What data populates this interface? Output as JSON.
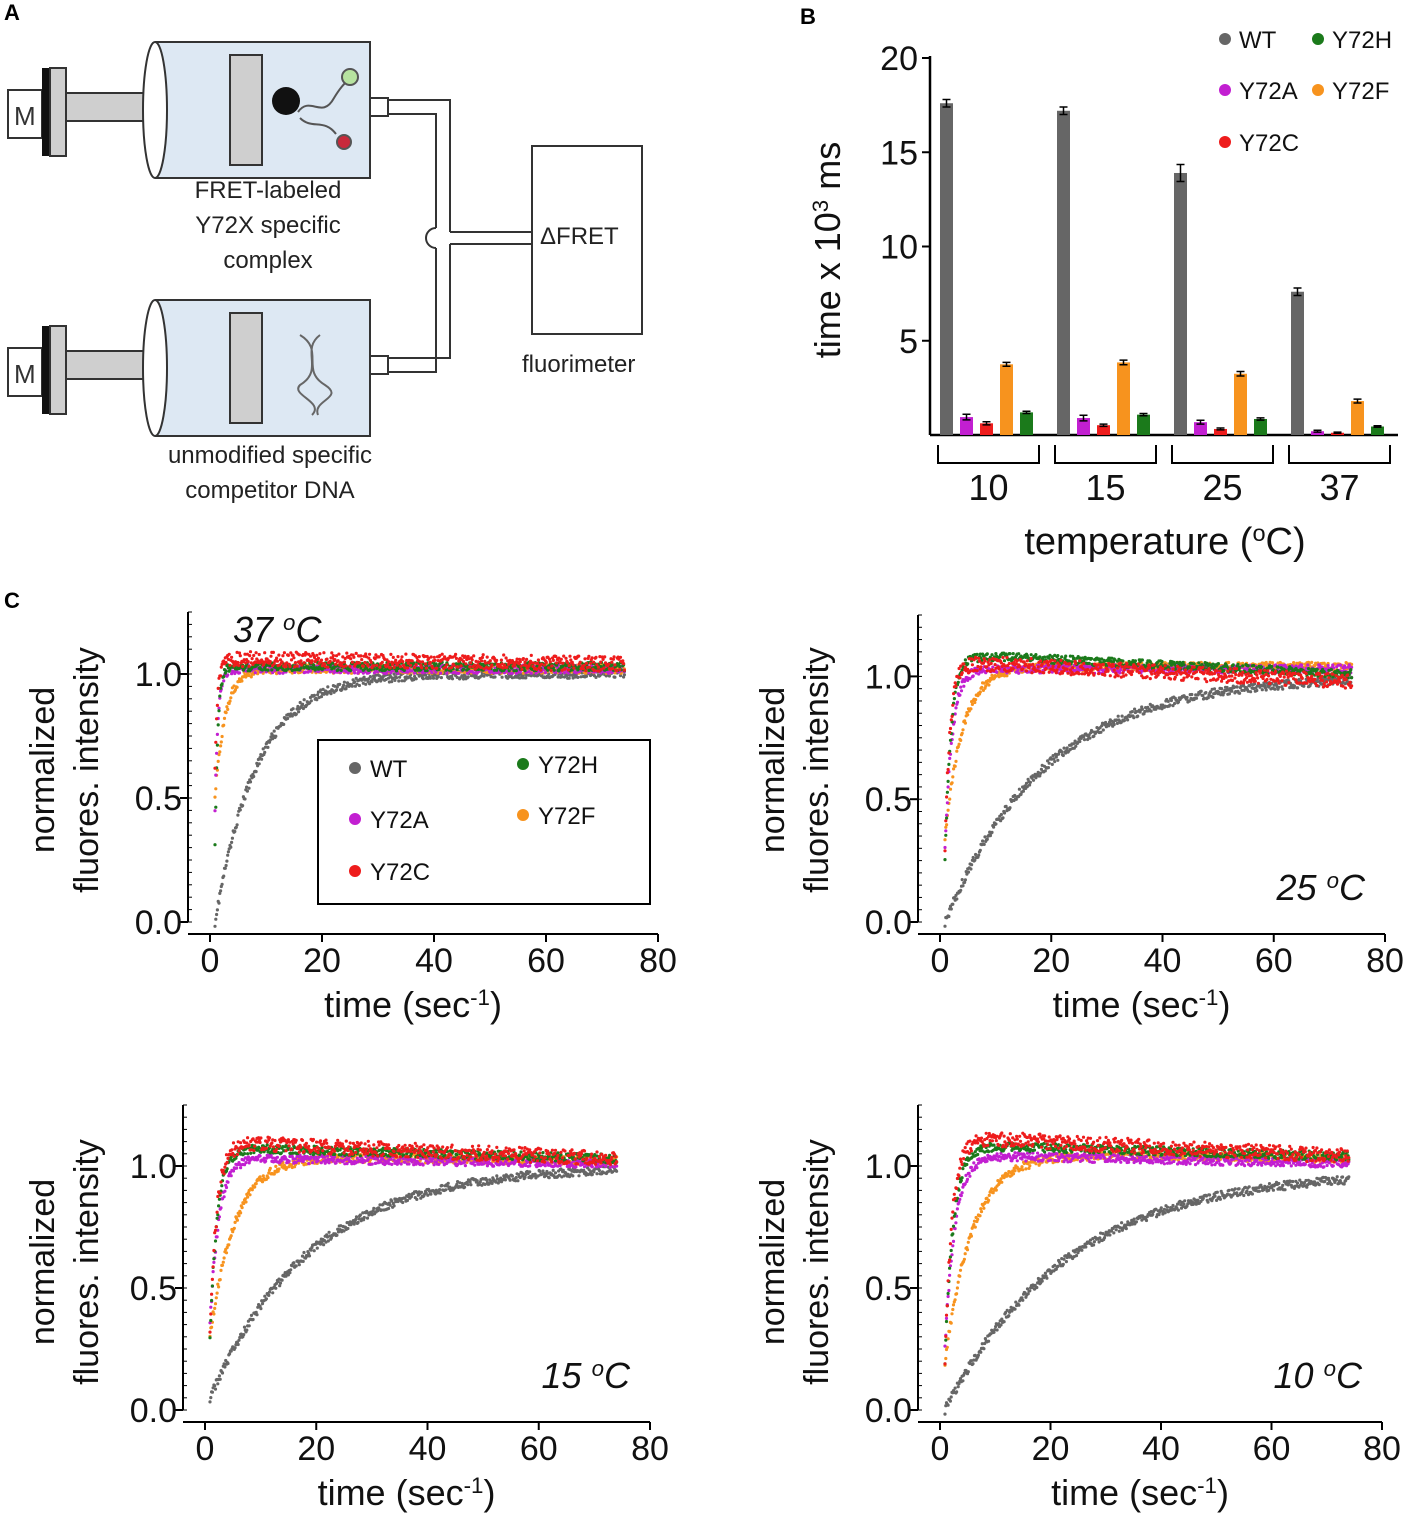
{
  "panels": {
    "a": "A",
    "b": "B",
    "c": "C"
  },
  "colors": {
    "WT": "#666666",
    "Y72A": "#c21fd1",
    "Y72C": "#ee1c1c",
    "Y72H": "#1b7a1b",
    "Y72F": "#f7931e",
    "axis": "#000000",
    "syringe_fill": "#dde8f3",
    "plunger_fill": "#cfcfcf"
  },
  "diagram": {
    "motor_label": "M",
    "top_syringe_label": [
      "FRET-labeled",
      "Y72X specific",
      "complex"
    ],
    "bottom_syringe_label": [
      "unmodified specific",
      "competitor DNA"
    ],
    "detector_label": "ΔFRET",
    "fluorimeter_label": "fluorimeter"
  },
  "chart_data": [
    {
      "id": "B",
      "type": "bar",
      "title": "",
      "xlabel": "temperature (oC)",
      "ylabel": "time x 10³ ms",
      "categories": [
        "10",
        "15",
        "25",
        "37"
      ],
      "ylim": [
        0,
        20
      ],
      "yticks": [
        "5",
        "10",
        "15",
        "20"
      ],
      "series": [
        {
          "name": "WT",
          "values": [
            17.6,
            17.2,
            13.9,
            7.6
          ],
          "errors": [
            0.2,
            0.2,
            0.45,
            0.2
          ]
        },
        {
          "name": "Y72A",
          "values": [
            0.95,
            0.9,
            0.68,
            0.2
          ],
          "errors": [
            0.15,
            0.15,
            0.1,
            0.05
          ]
        },
        {
          "name": "Y72C",
          "values": [
            0.62,
            0.52,
            0.32,
            0.12
          ],
          "errors": [
            0.08,
            0.06,
            0.05,
            0.03
          ]
        },
        {
          "name": "Y72F",
          "values": [
            3.75,
            3.85,
            3.25,
            1.8
          ],
          "errors": [
            0.1,
            0.12,
            0.12,
            0.1
          ]
        },
        {
          "name": "Y72H",
          "values": [
            1.2,
            1.08,
            0.85,
            0.45
          ],
          "errors": [
            0.06,
            0.06,
            0.06,
            0.04
          ]
        }
      ],
      "legend": {
        "placement": "top-right",
        "order": [
          "WT",
          "Y72H",
          "Y72A",
          "Y72F",
          "Y72C"
        ]
      }
    },
    {
      "id": "C1",
      "type": "scatter",
      "annotation": "37 oC",
      "annotation_place": "top-left",
      "xlabel": "time (sec-1)",
      "ylabel": [
        "normalized",
        "fluores. intensity"
      ],
      "xlim": [
        0,
        80
      ],
      "ylim": [
        0,
        1.25
      ],
      "xticks": [
        "0",
        "20",
        "40",
        "60",
        "80"
      ],
      "yticks": [
        "0.0",
        "0.5",
        "1.0"
      ],
      "t_end": 74,
      "series": [
        {
          "name": "WT",
          "tau": 7.5,
          "plateau": 1.0,
          "start": 0.0
        },
        {
          "name": "Y72F",
          "tau": 1.8,
          "plateau": 1.02,
          "start": 0.5
        },
        {
          "name": "Y72A",
          "tau": 0.55,
          "plateau": 1.02,
          "start": 0.45
        },
        {
          "name": "Y72H",
          "tau": 0.5,
          "plateau": 1.03,
          "start": 0.3
        },
        {
          "name": "Y72C",
          "tau": 0.45,
          "plateau": 1.06,
          "end": 1.04,
          "start": 0.6
        }
      ],
      "legend": {
        "placement": "center-right",
        "order": [
          "WT",
          "Y72H",
          "Y72A",
          "Y72F",
          "Y72C"
        ]
      }
    },
    {
      "id": "C2",
      "type": "scatter",
      "annotation": "25 oC",
      "annotation_place": "bottom-right",
      "xlabel": "time (sec-1)",
      "ylabel": [
        "normalized",
        "fluores. intensity"
      ],
      "xlim": [
        0,
        80
      ],
      "ylim": [
        0,
        1.25
      ],
      "xticks": [
        "0",
        "20",
        "40",
        "60",
        "80"
      ],
      "yticks": [
        "0.0",
        "0.5",
        "1.0"
      ],
      "t_end": 74,
      "series": [
        {
          "name": "WT",
          "tau": 18,
          "plateau": 1.0,
          "start": 0.0
        },
        {
          "name": "Y72F",
          "tau": 3.2,
          "plateau": 1.04,
          "start": 0.35
        },
        {
          "name": "Y72A",
          "tau": 1.3,
          "plateau": 1.03,
          "start": 0.3
        },
        {
          "name": "Y72H",
          "tau": 1.1,
          "plateau": 1.08,
          "end": 1.01,
          "start": 0.25
        },
        {
          "name": "Y72C",
          "tau": 0.9,
          "plateau": 1.05,
          "end": 0.98,
          "start": 0.3
        }
      ]
    },
    {
      "id": "C3",
      "type": "scatter",
      "annotation": "15 oC",
      "annotation_place": "bottom-right",
      "xlabel": "time (sec-1)",
      "ylabel": [
        "normalized",
        "fluores. intensity"
      ],
      "xlim": [
        0,
        80
      ],
      "ylim": [
        0,
        1.25
      ],
      "xticks": [
        "0",
        "20",
        "40",
        "60",
        "80"
      ],
      "yticks": [
        "0.0",
        "0.5",
        "1.0"
      ],
      "t_end": 74,
      "series": [
        {
          "name": "WT",
          "tau": 18,
          "plateau": 1.0,
          "start": 0.05
        },
        {
          "name": "Y72F",
          "tau": 4.5,
          "plateau": 1.04,
          "end": 1.02,
          "start": 0.3
        },
        {
          "name": "Y72A",
          "tau": 1.6,
          "plateau": 1.03,
          "end": 1.01,
          "start": 0.35
        },
        {
          "name": "Y72H",
          "tau": 1.3,
          "plateau": 1.07,
          "end": 1.03,
          "start": 0.3
        },
        {
          "name": "Y72C",
          "tau": 1.2,
          "plateau": 1.09,
          "end": 1.03,
          "start": 0.3
        }
      ]
    },
    {
      "id": "C4",
      "type": "scatter",
      "annotation": "10 oC",
      "annotation_place": "bottom-right",
      "xlabel": "time (sec-1)",
      "ylabel": [
        "normalized",
        "fluores. intensity"
      ],
      "xlim": [
        0,
        80
      ],
      "ylim": [
        0,
        1.25
      ],
      "xticks": [
        "0",
        "20",
        "40",
        "60",
        "80"
      ],
      "yticks": [
        "0.0",
        "0.5",
        "1.0"
      ],
      "t_end": 74,
      "series": [
        {
          "name": "WT",
          "tau": 22,
          "plateau": 0.98,
          "start": 0.0
        },
        {
          "name": "Y72F",
          "tau": 5.0,
          "plateau": 1.05,
          "end": 1.03,
          "start": 0.2
        },
        {
          "name": "Y72A",
          "tau": 1.8,
          "plateau": 1.04,
          "end": 1.01,
          "start": 0.25
        },
        {
          "name": "Y72H",
          "tau": 1.5,
          "plateau": 1.08,
          "end": 1.04,
          "start": 0.2
        },
        {
          "name": "Y72C",
          "tau": 1.3,
          "plateau": 1.11,
          "end": 1.04,
          "start": 0.2
        }
      ]
    }
  ]
}
